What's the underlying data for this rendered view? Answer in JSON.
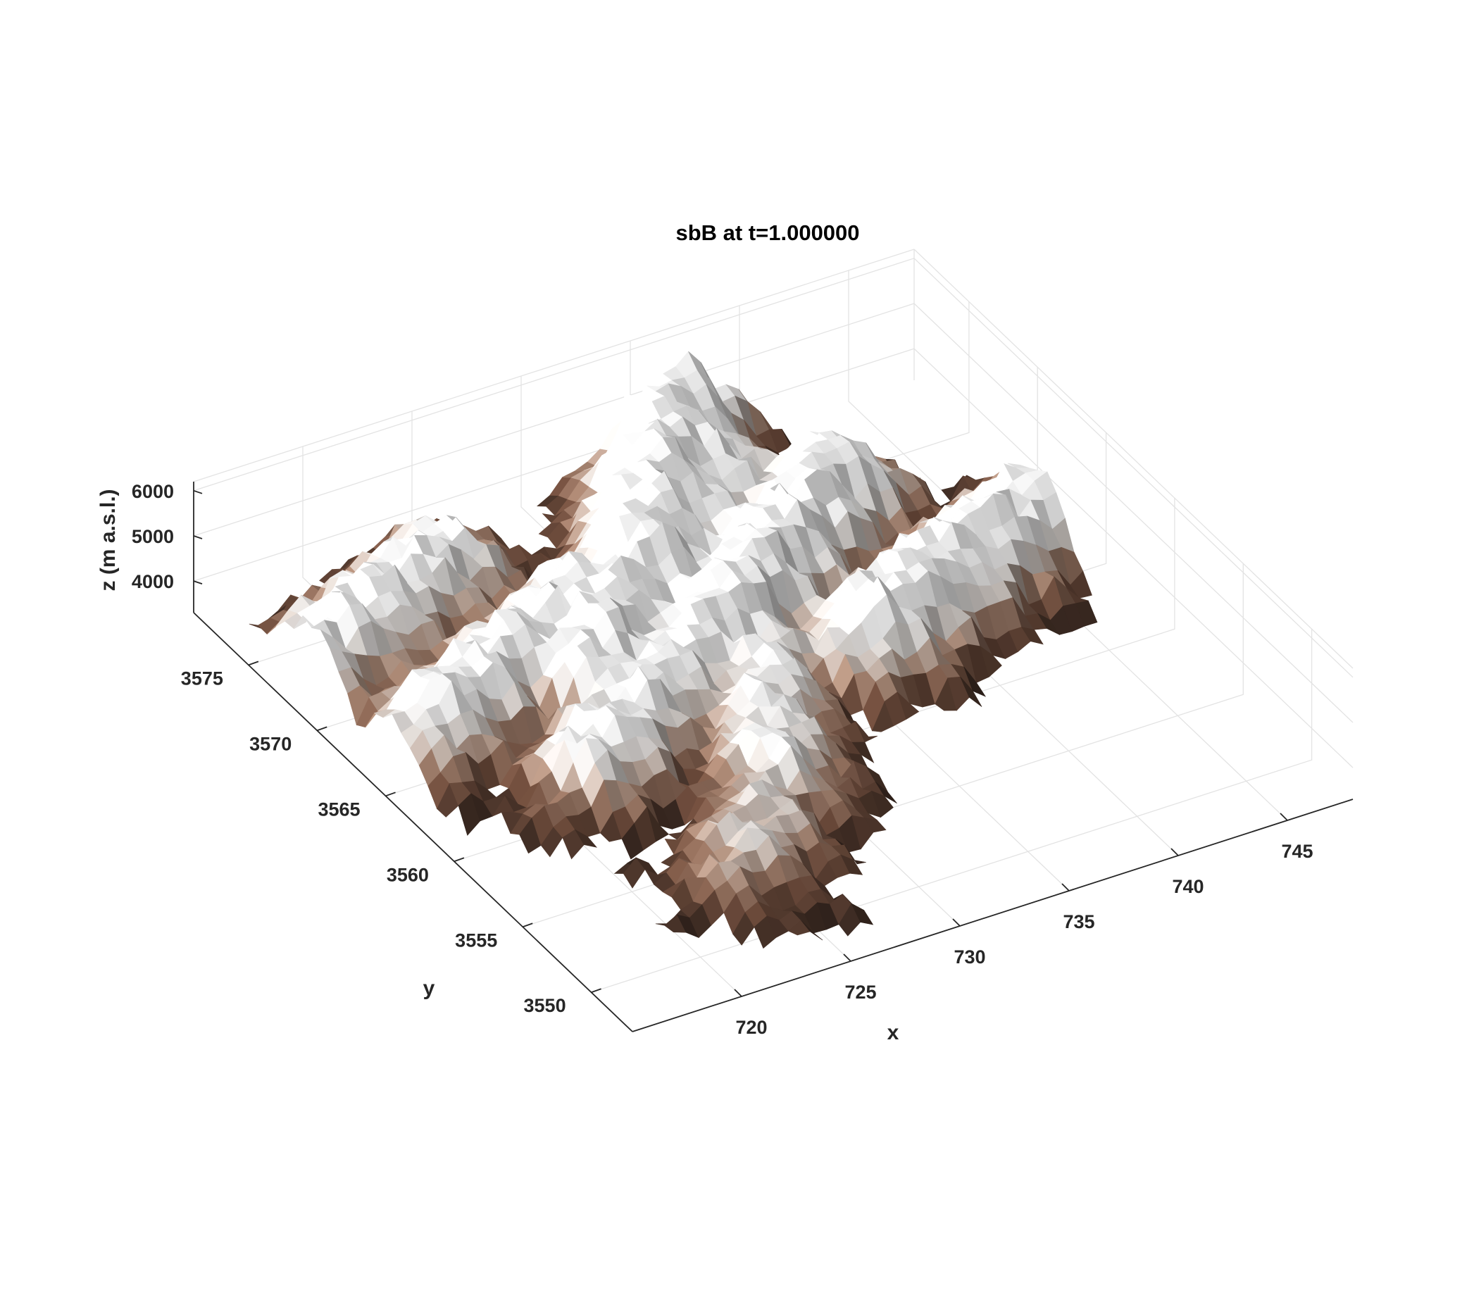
{
  "chart_data": {
    "type": "surface3d",
    "title": "sbB at t=1.000000",
    "xlabel": "x",
    "ylabel": "y",
    "zlabel": "z (m a.s.l.)",
    "x_ticks": [
      720,
      725,
      730,
      735,
      740,
      745
    ],
    "y_ticks": [
      3550,
      3555,
      3560,
      3565,
      3570,
      3575
    ],
    "z_ticks": [
      4000,
      5000,
      6000
    ],
    "xlim": [
      715,
      748
    ],
    "ylim": [
      3547,
      3579
    ],
    "zlim": [
      3300,
      6200
    ],
    "grid": true,
    "colormap": [
      "#3b2a22",
      "#6e4c3c",
      "#a98774",
      "#d9d2cd",
      "#f7f7f7"
    ],
    "accent_color": "#c9825a",
    "surface": {
      "description_note": "",
      "ridges": [
        {
          "x0": 716,
          "y0": 3572,
          "x1": 724,
          "y1": 3575,
          "z": 4900
        },
        {
          "x0": 718,
          "y0": 3566,
          "x1": 727,
          "y1": 3570,
          "z": 5000
        },
        {
          "x0": 722,
          "y0": 3561,
          "x1": 731,
          "y1": 3566,
          "z": 4900
        },
        {
          "x0": 725,
          "y0": 3566,
          "x1": 736,
          "y1": 3575,
          "z": 5200
        },
        {
          "x0": 730,
          "y0": 3570,
          "x1": 737,
          "y1": 3579,
          "z": 5600
        },
        {
          "x0": 731,
          "y0": 3566,
          "x1": 740,
          "y1": 3572,
          "z": 5300
        },
        {
          "x0": 736,
          "y0": 3563,
          "x1": 746,
          "y1": 3567,
          "z": 5200
        },
        {
          "x0": 728,
          "y0": 3557,
          "x1": 732,
          "y1": 3565,
          "z": 4700
        },
        {
          "x0": 724,
          "y0": 3553,
          "x1": 729,
          "y1": 3558,
          "z": 4400
        }
      ]
    }
  }
}
